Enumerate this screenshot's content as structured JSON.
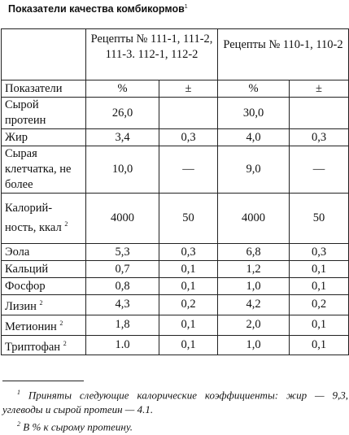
{
  "title": "Показатели качества комбикормов",
  "title_note": "1",
  "table": {
    "group1": "Рецепты № 111-1, 111-2, 111-3. 112-1, 112-2",
    "group2": "Рецепты № 110-1, 110-2",
    "col_indicator": "Показатели",
    "col_pct": "%",
    "col_pm": "±",
    "rows": [
      {
        "name": "Сырой протеин",
        "note": "",
        "a": "26,0",
        "b": "",
        "c": "30,0",
        "d": ""
      },
      {
        "name": "Жир",
        "note": "",
        "a": "3,4",
        "b": "0,3",
        "c": "4,0",
        "d": "0,3"
      },
      {
        "name": "Сырая клетчатка, не более",
        "note": "",
        "a": "10,0",
        "b": "—",
        "c": "9,0",
        "d": "—"
      },
      {
        "name": "Калорий-ность, ккал",
        "note": "2",
        "a": "4000",
        "b": "50",
        "c": "4000",
        "d": "50"
      },
      {
        "name": "Эола",
        "note": "",
        "a": "5,3",
        "b": "0,3",
        "c": "6,8",
        "d": "0,3"
      },
      {
        "name": "Кальций",
        "note": "",
        "a": "0,7",
        "b": "0,1",
        "c": "1,2",
        "d": "0,1"
      },
      {
        "name": "Фосфор",
        "note": "",
        "a": "0,8",
        "b": "0,1",
        "c": "1,0",
        "d": "0,1"
      },
      {
        "name": "Лизин",
        "note": "2",
        "a": "4,3",
        "b": "0,2",
        "c": "4,2",
        "d": "0,2"
      },
      {
        "name": "Метионин",
        "note": "2",
        "a": "1,8",
        "b": "0,1",
        "c": "2,0",
        "d": "0,1"
      },
      {
        "name": "Триптофан",
        "note": "2",
        "a": "1.0",
        "b": "0,1",
        "c": "1,0",
        "d": "0,1"
      }
    ]
  },
  "footnotes": [
    {
      "mark": "1",
      "text": "Приняты следующие калорические коэффициенты: жир — 9,3, углеводы и сырой протеин — 4.1."
    },
    {
      "mark": "2",
      "text": "В % к сырому протеину."
    }
  ]
}
